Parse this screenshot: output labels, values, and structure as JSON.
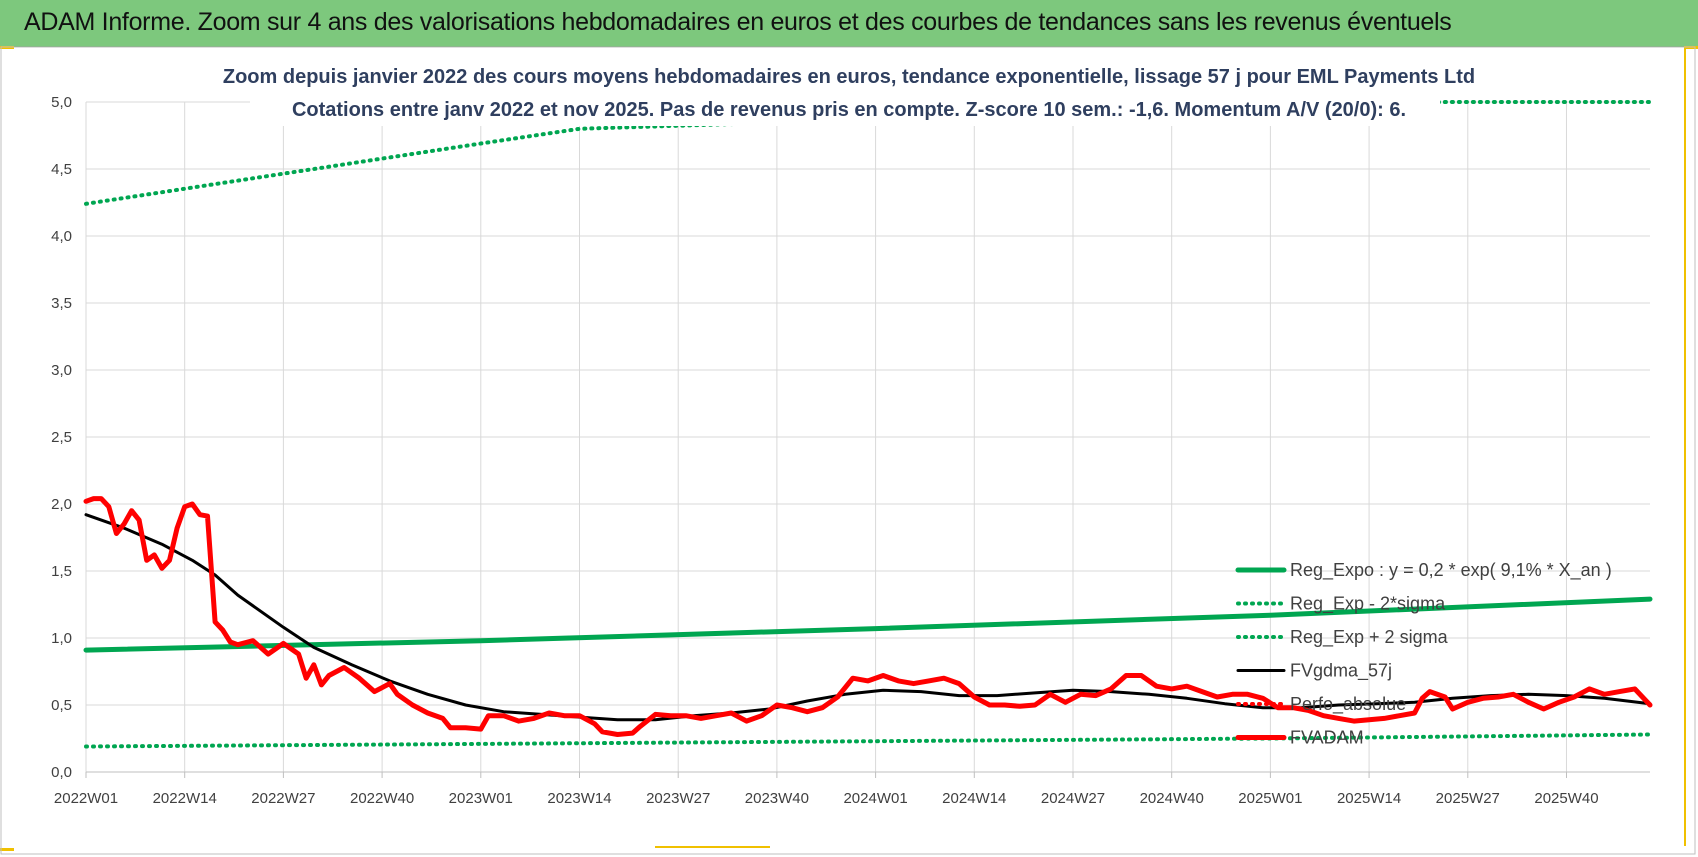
{
  "banner": {
    "title": "ADAM Informe. Zoom sur 4 ans des valorisations hebdomadaires en euros et des courbes de tendances sans les revenus éventuels"
  },
  "colors": {
    "banner_bg": "#7dc87d",
    "reg_expo": "#00a651",
    "fvgdma": "#000000",
    "fvadam": "#ff0000",
    "perfo": "#ff0000"
  },
  "chart_data": {
    "type": "line",
    "title_line1": "Zoom depuis janvier 2022 des cours moyens hebdomadaires en euros, tendance exponentielle, lissage 57 j pour EML Payments Ltd",
    "title_line2": "Cotations entre janv 2022 et nov 2025. Pas de revenus pris en compte. Z-score 10 sem.: -1,6. Momentum A/V (20/0): 6.",
    "x_unit": "week index (0 = 2022W01)",
    "x_tick_labels": [
      "2022W01",
      "2022W14",
      "2022W27",
      "2022W40",
      "2023W01",
      "2023W14",
      "2023W27",
      "2023W40",
      "2024W01",
      "2024W14",
      "2024W27",
      "2024W40",
      "2025W01",
      "2025W14",
      "2025W27",
      "2025W40"
    ],
    "x_range_weeks": [
      0,
      206
    ],
    "y_tick_labels": [
      "0,0",
      "0,5",
      "1,0",
      "1,5",
      "2,0",
      "2,5",
      "3,0",
      "3,5",
      "4,0",
      "4,5",
      "5,0"
    ],
    "ylim": [
      0,
      5
    ],
    "grid": true,
    "legend_position": "right, lower-middle",
    "legend": [
      "Reg_Expo : y = 0,2 * exp( 9,1% *  X_an )",
      "Reg_Exp - 2*sigma",
      "Reg_Exp + 2 sigma",
      "FVgdma_57j",
      "Perfo_absolue",
      "FVADAM"
    ],
    "series": [
      {
        "name": "Reg_Expo : y = 0,2 * exp( 9,1% *  X_an )",
        "style": "solid-thick",
        "points": [
          [
            0,
            0.91
          ],
          [
            52,
            0.98
          ],
          [
            104,
            1.07
          ],
          [
            156,
            1.17
          ],
          [
            206,
            1.29
          ]
        ]
      },
      {
        "name": "Reg_Exp - 2*sigma",
        "style": "dotted",
        "points": [
          [
            0,
            0.19
          ],
          [
            52,
            0.21
          ],
          [
            104,
            0.23
          ],
          [
            156,
            0.25
          ],
          [
            206,
            0.28
          ]
        ]
      },
      {
        "name": "Reg_Exp + 2 sigma",
        "style": "dotted",
        "points": [
          [
            0,
            4.24
          ],
          [
            52,
            4.69
          ],
          [
            65,
            4.8
          ],
          [
            179,
            5.0
          ],
          [
            206,
            5.0
          ]
        ]
      },
      {
        "name": "FVgdma_57j",
        "style": "solid-black",
        "points": [
          [
            0,
            1.92
          ],
          [
            5,
            1.82
          ],
          [
            10,
            1.7
          ],
          [
            14,
            1.58
          ],
          [
            17,
            1.47
          ],
          [
            20,
            1.32
          ],
          [
            26,
            1.08
          ],
          [
            30,
            0.93
          ],
          [
            35,
            0.8
          ],
          [
            40,
            0.68
          ],
          [
            45,
            0.58
          ],
          [
            50,
            0.5
          ],
          [
            55,
            0.45
          ],
          [
            60,
            0.43
          ],
          [
            65,
            0.41
          ],
          [
            70,
            0.39
          ],
          [
            75,
            0.39
          ],
          [
            80,
            0.42
          ],
          [
            85,
            0.44
          ],
          [
            90,
            0.47
          ],
          [
            95,
            0.53
          ],
          [
            100,
            0.58
          ],
          [
            105,
            0.61
          ],
          [
            110,
            0.6
          ],
          [
            115,
            0.57
          ],
          [
            120,
            0.57
          ],
          [
            125,
            0.59
          ],
          [
            130,
            0.61
          ],
          [
            135,
            0.6
          ],
          [
            140,
            0.58
          ],
          [
            145,
            0.55
          ],
          [
            150,
            0.51
          ],
          [
            155,
            0.48
          ],
          [
            160,
            0.48
          ],
          [
            165,
            0.5
          ],
          [
            170,
            0.51
          ],
          [
            175,
            0.52
          ],
          [
            180,
            0.55
          ],
          [
            185,
            0.57
          ],
          [
            190,
            0.58
          ],
          [
            195,
            0.57
          ],
          [
            200,
            0.55
          ],
          [
            206,
            0.51
          ]
        ]
      },
      {
        "name": "FVADAM",
        "style": "solid-red-thick",
        "points": [
          [
            0,
            2.02
          ],
          [
            1,
            2.04
          ],
          [
            2,
            2.04
          ],
          [
            3,
            1.98
          ],
          [
            4,
            1.78
          ],
          [
            5,
            1.85
          ],
          [
            6,
            1.95
          ],
          [
            7,
            1.88
          ],
          [
            8,
            1.58
          ],
          [
            9,
            1.62
          ],
          [
            10,
            1.52
          ],
          [
            11,
            1.58
          ],
          [
            12,
            1.82
          ],
          [
            13,
            1.98
          ],
          [
            14,
            2.0
          ],
          [
            15,
            1.92
          ],
          [
            16,
            1.91
          ],
          [
            17,
            1.12
          ],
          [
            18,
            1.06
          ],
          [
            19,
            0.97
          ],
          [
            20,
            0.95
          ],
          [
            22,
            0.98
          ],
          [
            24,
            0.88
          ],
          [
            26,
            0.96
          ],
          [
            28,
            0.88
          ],
          [
            29,
            0.7
          ],
          [
            30,
            0.8
          ],
          [
            31,
            0.65
          ],
          [
            32,
            0.72
          ],
          [
            34,
            0.78
          ],
          [
            36,
            0.7
          ],
          [
            38,
            0.6
          ],
          [
            40,
            0.66
          ],
          [
            41,
            0.58
          ],
          [
            43,
            0.5
          ],
          [
            45,
            0.44
          ],
          [
            47,
            0.4
          ],
          [
            48,
            0.33
          ],
          [
            50,
            0.33
          ],
          [
            52,
            0.32
          ],
          [
            53,
            0.42
          ],
          [
            55,
            0.42
          ],
          [
            57,
            0.38
          ],
          [
            59,
            0.4
          ],
          [
            61,
            0.44
          ],
          [
            63,
            0.42
          ],
          [
            65,
            0.42
          ],
          [
            67,
            0.36
          ],
          [
            68,
            0.3
          ],
          [
            70,
            0.28
          ],
          [
            72,
            0.29
          ],
          [
            73,
            0.34
          ],
          [
            75,
            0.43
          ],
          [
            77,
            0.42
          ],
          [
            79,
            0.42
          ],
          [
            81,
            0.4
          ],
          [
            83,
            0.42
          ],
          [
            85,
            0.44
          ],
          [
            87,
            0.38
          ],
          [
            89,
            0.42
          ],
          [
            91,
            0.5
          ],
          [
            93,
            0.48
          ],
          [
            95,
            0.45
          ],
          [
            97,
            0.48
          ],
          [
            99,
            0.56
          ],
          [
            101,
            0.7
          ],
          [
            103,
            0.68
          ],
          [
            105,
            0.72
          ],
          [
            107,
            0.68
          ],
          [
            109,
            0.66
          ],
          [
            111,
            0.68
          ],
          [
            113,
            0.7
          ],
          [
            115,
            0.66
          ],
          [
            117,
            0.56
          ],
          [
            119,
            0.5
          ],
          [
            121,
            0.5
          ],
          [
            123,
            0.49
          ],
          [
            125,
            0.5
          ],
          [
            127,
            0.58
          ],
          [
            129,
            0.52
          ],
          [
            131,
            0.58
          ],
          [
            133,
            0.57
          ],
          [
            135,
            0.62
          ],
          [
            137,
            0.72
          ],
          [
            139,
            0.72
          ],
          [
            141,
            0.64
          ],
          [
            143,
            0.62
          ],
          [
            145,
            0.64
          ],
          [
            147,
            0.6
          ],
          [
            149,
            0.56
          ],
          [
            151,
            0.58
          ],
          [
            153,
            0.58
          ],
          [
            155,
            0.55
          ],
          [
            157,
            0.48
          ],
          [
            159,
            0.48
          ],
          [
            161,
            0.46
          ],
          [
            163,
            0.42
          ],
          [
            165,
            0.4
          ],
          [
            167,
            0.38
          ],
          [
            169,
            0.39
          ],
          [
            171,
            0.4
          ],
          [
            173,
            0.42
          ],
          [
            175,
            0.44
          ],
          [
            176,
            0.55
          ],
          [
            177,
            0.6
          ],
          [
            179,
            0.56
          ],
          [
            180,
            0.47
          ],
          [
            182,
            0.52
          ],
          [
            184,
            0.55
          ],
          [
            186,
            0.56
          ],
          [
            188,
            0.58
          ],
          [
            190,
            0.52
          ],
          [
            192,
            0.47
          ],
          [
            194,
            0.52
          ],
          [
            196,
            0.56
          ],
          [
            198,
            0.62
          ],
          [
            200,
            0.58
          ],
          [
            202,
            0.6
          ],
          [
            204,
            0.62
          ],
          [
            206,
            0.5
          ]
        ]
      }
    ]
  }
}
